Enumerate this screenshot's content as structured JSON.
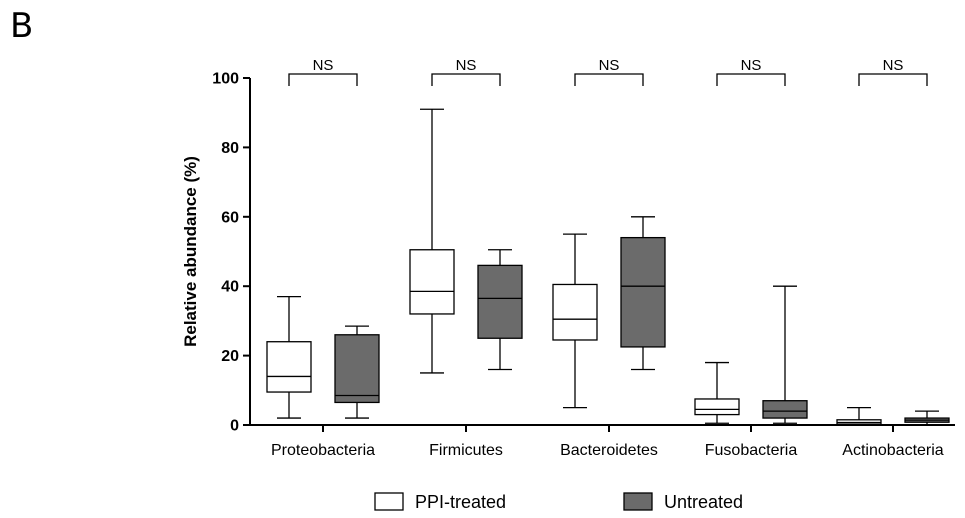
{
  "panel_label": "B",
  "chart_data": {
    "type": "boxplot",
    "ylabel": "Relative abundance (%)",
    "xlabel": "",
    "ylim": [
      0,
      100
    ],
    "yticks": [
      0,
      20,
      40,
      60,
      80,
      100
    ],
    "categories": [
      "Proteobacteria",
      "Firmicutes",
      "Bacteroidetes",
      "Fusobacteria",
      "Actinobacteria"
    ],
    "significance": [
      "NS",
      "NS",
      "NS",
      "NS",
      "NS"
    ],
    "legend_position": "bottom",
    "series": [
      {
        "name": "PPI-treated",
        "color": "#ffffff",
        "boxes": [
          {
            "min": 2,
            "q1": 9.5,
            "median": 14,
            "q3": 24,
            "max": 37
          },
          {
            "min": 15,
            "q1": 32,
            "median": 38.5,
            "q3": 50.5,
            "max": 91
          },
          {
            "min": 5,
            "q1": 24.5,
            "median": 30.5,
            "q3": 40.5,
            "max": 55
          },
          {
            "min": 0.5,
            "q1": 3,
            "median": 4.5,
            "q3": 7.5,
            "max": 18
          },
          {
            "min": 0,
            "q1": 0.2,
            "median": 0.7,
            "q3": 1.5,
            "max": 5
          }
        ]
      },
      {
        "name": "Untreated",
        "color": "#6b6b6b",
        "boxes": [
          {
            "min": 2,
            "q1": 6.5,
            "median": 8.5,
            "q3": 26,
            "max": 28.5
          },
          {
            "min": 16,
            "q1": 25,
            "median": 36.5,
            "q3": 46,
            "max": 50.5
          },
          {
            "min": 16,
            "q1": 22.5,
            "median": 40,
            "q3": 54,
            "max": 60
          },
          {
            "min": 0.5,
            "q1": 2,
            "median": 4,
            "q3": 7,
            "max": 40
          },
          {
            "min": 0,
            "q1": 0.8,
            "median": 1.4,
            "q3": 2,
            "max": 4
          }
        ]
      }
    ]
  }
}
